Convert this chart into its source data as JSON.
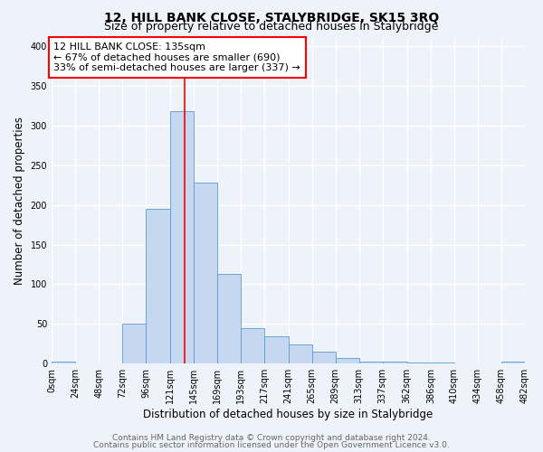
{
  "title": "12, HILL BANK CLOSE, STALYBRIDGE, SK15 3RQ",
  "subtitle": "Size of property relative to detached houses in Stalybridge",
  "xlabel": "Distribution of detached houses by size in Stalybridge",
  "ylabel": "Number of detached properties",
  "footer_line1": "Contains HM Land Registry data © Crown copyright and database right 2024.",
  "footer_line2": "Contains public sector information licensed under the Open Government Licence v3.0.",
  "bar_edges": [
    0,
    24,
    48,
    72,
    96,
    121,
    145,
    169,
    193,
    217,
    241,
    265,
    289,
    313,
    337,
    362,
    386,
    410,
    434,
    458,
    482
  ],
  "bar_heights": [
    2,
    0,
    0,
    50,
    195,
    318,
    228,
    113,
    45,
    35,
    24,
    15,
    7,
    2,
    2,
    1,
    1,
    0,
    0,
    2
  ],
  "bar_color": "#c5d8f0",
  "bar_edge_color": "#5b9bd5",
  "vline_x": 135,
  "vline_color": "red",
  "annotation_text": "12 HILL BANK CLOSE: 135sqm\n← 67% of detached houses are smaller (690)\n33% of semi-detached houses are larger (337) →",
  "annotation_box_color": "white",
  "annotation_box_edge_color": "red",
  "ylim": [
    0,
    410
  ],
  "yticks": [
    0,
    50,
    100,
    150,
    200,
    250,
    300,
    350,
    400
  ],
  "xtick_labels": [
    "0sqm",
    "24sqm",
    "48sqm",
    "72sqm",
    "96sqm",
    "121sqm",
    "145sqm",
    "169sqm",
    "193sqm",
    "217sqm",
    "241sqm",
    "265sqm",
    "289sqm",
    "313sqm",
    "337sqm",
    "362sqm",
    "386sqm",
    "410sqm",
    "434sqm",
    "458sqm",
    "482sqm"
  ],
  "background_color": "#eef2f9",
  "grid_color": "white",
  "title_fontsize": 10,
  "subtitle_fontsize": 9,
  "axis_label_fontsize": 8.5,
  "tick_fontsize": 7,
  "annotation_fontsize": 8,
  "footer_fontsize": 6.5
}
